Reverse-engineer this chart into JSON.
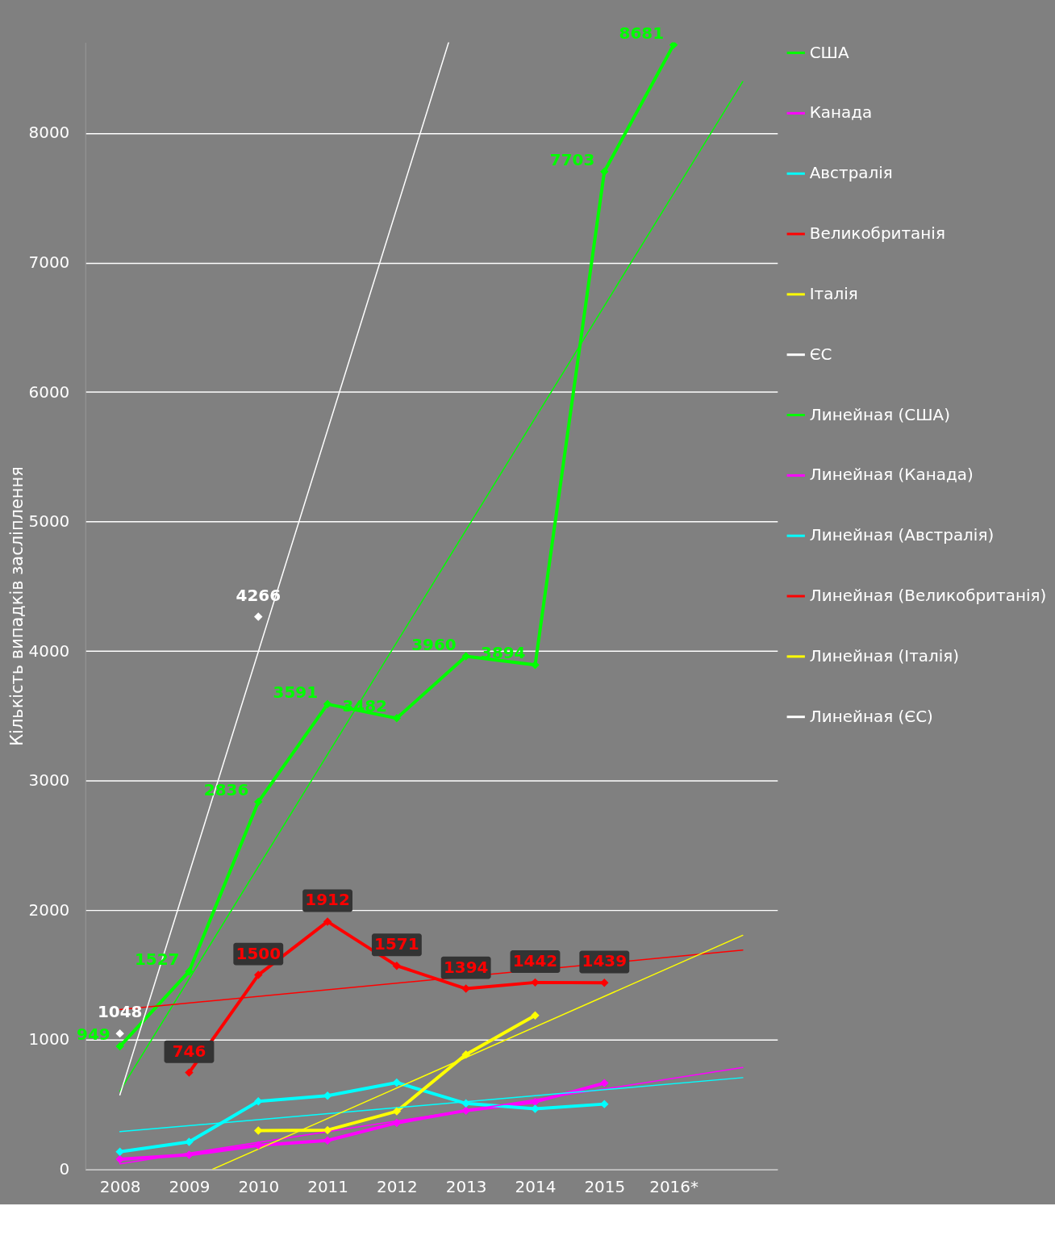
{
  "chart_data": {
    "type": "line",
    "ylabel": "Кількість випадків засліплення",
    "x": [
      2008,
      2009,
      2010,
      2011,
      2012,
      2013,
      2014,
      2015,
      2016
    ],
    "xlim": [
      2007.5,
      2017.5
    ],
    "xticks": [
      2008,
      2009,
      2010,
      2011,
      2012,
      2013,
      2014,
      2015,
      {
        "value": 2016,
        "label": "2016*"
      }
    ],
    "ylim": [
      0,
      8700
    ],
    "yticks": [
      0,
      1000,
      2000,
      3000,
      4000,
      5000,
      6000,
      7000,
      8000
    ],
    "grid": "y",
    "legend": "right",
    "marker": "diamond",
    "series": [
      {
        "name": "США",
        "color": "#00ff00",
        "values": [
          949,
          1527,
          2836,
          3591,
          3482,
          3960,
          3894,
          7703,
          8681
        ],
        "value_labels": [
          "949",
          "1527",
          "2836",
          "3591",
          "3482",
          "3960",
          "3894",
          "7703",
          "8681"
        ]
      },
      {
        "name": "Канада",
        "color": "#ff00ff",
        "values": [
          77,
          111,
          185,
          222,
          358,
          453,
          520,
          665,
          null
        ]
      },
      {
        "name": "Австралія",
        "color": "#00ffff",
        "values": [
          135,
          211,
          524,
          568,
          669,
          508,
          467,
          503,
          null
        ]
      },
      {
        "name": "Великобританія",
        "color": "#ff0000",
        "values": [
          null,
          746,
          1500,
          1912,
          1571,
          1394,
          1442,
          1439,
          null
        ],
        "value_labels": [
          null,
          "746",
          "1500",
          "1912",
          "1571",
          "1394",
          "1442",
          "1439",
          null
        ]
      },
      {
        "name": "Італія",
        "color": "#ffff00",
        "values": [
          null,
          null,
          298,
          302,
          447,
          886,
          1188,
          null,
          null
        ]
      },
      {
        "name": "ЄС",
        "color": "#ffffff",
        "values": [
          1048,
          null,
          4266,
          null,
          null,
          null,
          null,
          null,
          null
        ],
        "value_labels": [
          "1048",
          null,
          "4266",
          null,
          null,
          null,
          null,
          null,
          null
        ]
      },
      {
        "name": "Линейная (США)",
        "color": "#00ff00",
        "marker": "none",
        "x": [
          2008,
          2017
        ],
        "values": [
          604,
          8398
        ]
      },
      {
        "name": "Линейная (Канада)",
        "color": "#ff00ff",
        "marker": "none",
        "x": [
          2008,
          2017
        ],
        "values": [
          42,
          785
        ]
      },
      {
        "name": "Линейная (Австралія)",
        "color": "#00ffff",
        "marker": "none",
        "x": [
          2008,
          2017
        ],
        "values": [
          290,
          707
        ]
      },
      {
        "name": "Линейная (Великобританія)",
        "color": "#ff0000",
        "marker": "none",
        "x": [
          2008,
          2017
        ],
        "values": [
          1232,
          1692
        ]
      },
      {
        "name": "Линейная (Італія)",
        "color": "#ffff00",
        "marker": "none",
        "x": [
          2009.34,
          2017
        ],
        "values": [
          0,
          1806
        ]
      },
      {
        "name": "Линейная (ЄС)",
        "color": "#ffffff",
        "marker": "none",
        "x": [
          2008,
          2012.75
        ],
        "values": [
          574,
          8700
        ]
      }
    ]
  }
}
